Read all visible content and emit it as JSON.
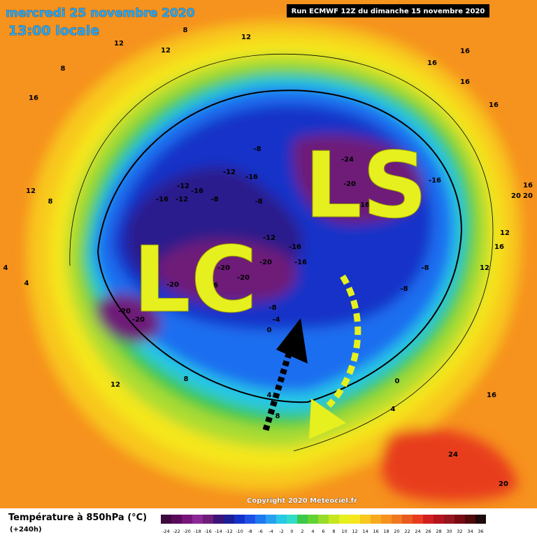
{
  "header": {
    "date": "mercredi 25 novembre 2020",
    "time": "13:00 locale",
    "run": "Run ECMWF 12Z du dimanche 15 novembre 2020"
  },
  "map": {
    "regions": [
      "LC",
      "LS"
    ],
    "labels": [
      -24,
      -20,
      -16,
      -16,
      -8,
      -12,
      -16,
      -12,
      -16,
      -16,
      -12,
      -8,
      -8,
      -12,
      -16,
      -16,
      -20,
      -24,
      -20,
      -20,
      -16,
      -20,
      -20,
      -20,
      -8,
      -4,
      0,
      -8,
      -8,
      12,
      12,
      8,
      8,
      16,
      12,
      16,
      16,
      16,
      16,
      16,
      20,
      20,
      12,
      16,
      12,
      12,
      8,
      4,
      4,
      12,
      8,
      4,
      8,
      0,
      4,
      16,
      24,
      20
    ]
  },
  "footer": {
    "title": "Température à 850hPa (°C)",
    "lead": "(+240h)",
    "copyright": "Copyright 2020 Meteociel.fr",
    "scale": [
      -24,
      -22,
      -20,
      -18,
      -16,
      -14,
      -12,
      -10,
      -8,
      -6,
      -4,
      -2,
      0,
      2,
      4,
      6,
      8,
      10,
      12,
      14,
      16,
      18,
      20,
      22,
      24,
      26,
      28,
      30,
      32,
      34,
      36
    ]
  }
}
